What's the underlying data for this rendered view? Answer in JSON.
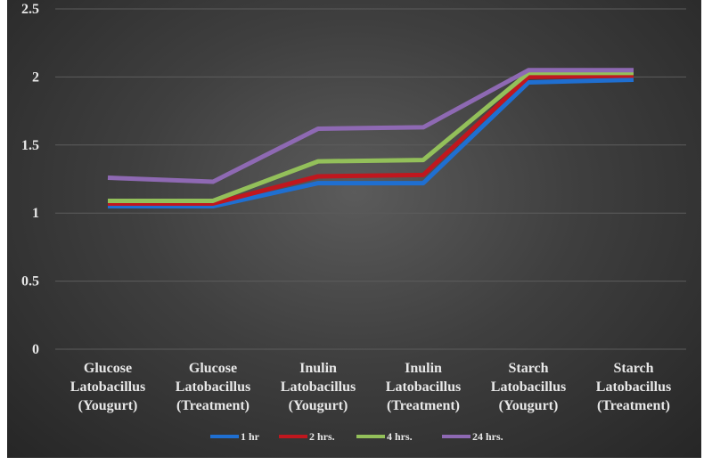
{
  "chart_data": {
    "type": "line",
    "title": "",
    "xlabel": "",
    "ylabel": "",
    "ylim": [
      0,
      2.5
    ],
    "y_ticks": [
      "0",
      "0.5",
      "1",
      "1.5",
      "2",
      "2.5"
    ],
    "y_tick_values": [
      0,
      0.5,
      1,
      1.5,
      2,
      2.5
    ],
    "grid": true,
    "legend_position": "bottom",
    "categories": [
      [
        "Glucose",
        "Latobacillus",
        "(Yougurt)"
      ],
      [
        "Glucose",
        "Latobacillus",
        "(Treatment)"
      ],
      [
        "Inulin",
        "Latobacillus",
        "(Yougurt)"
      ],
      [
        "Inulin",
        "Latobacillus",
        "(Treatment)"
      ],
      [
        "Starch",
        "Latobacillus",
        "(Yougurt)"
      ],
      [
        "Starch",
        "Latobacillus",
        "(Treatment)"
      ]
    ],
    "series": [
      {
        "name": "1 hr",
        "color": "#1f6fd1",
        "values": [
          1.05,
          1.05,
          1.22,
          1.22,
          1.96,
          1.98
        ]
      },
      {
        "name": "2 hrs.",
        "color": "#c0171e",
        "values": [
          1.07,
          1.07,
          1.27,
          1.28,
          2.0,
          2.01
        ]
      },
      {
        "name": "4 hrs.",
        "color": "#93c05a",
        "values": [
          1.09,
          1.09,
          1.38,
          1.39,
          2.03,
          2.03
        ]
      },
      {
        "name": "24 hrs.",
        "color": "#8e69b3",
        "values": [
          1.26,
          1.23,
          1.62,
          1.63,
          2.05,
          2.05
        ]
      }
    ]
  }
}
